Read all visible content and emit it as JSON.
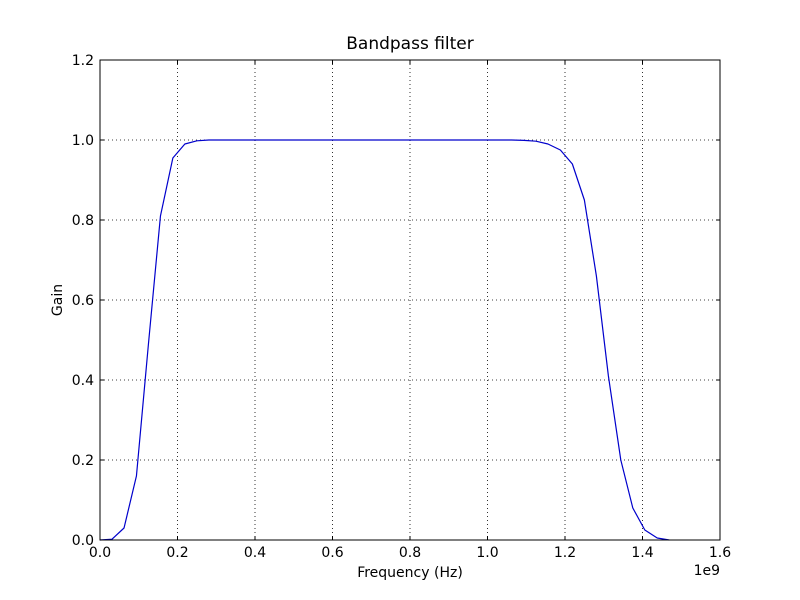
{
  "chart_data": {
    "type": "line",
    "title": "Bandpass filter",
    "xlabel": "Frequency (Hz)",
    "ylabel": "Gain",
    "x_offset_label": "1e9",
    "xlim": [
      0,
      1.6
    ],
    "ylim": [
      0,
      1.2
    ],
    "x_ticks": [
      0.0,
      0.2,
      0.4,
      0.6,
      0.8,
      1.0,
      1.2,
      1.4,
      1.6
    ],
    "x_tick_labels": [
      "0.0",
      "0.2",
      "0.4",
      "0.6",
      "0.8",
      "1.0",
      "1.2",
      "1.4",
      "1.6"
    ],
    "y_ticks": [
      0.0,
      0.2,
      0.4,
      0.6,
      0.8,
      1.0,
      1.2
    ],
    "y_tick_labels": [
      "0.0",
      "0.2",
      "0.4",
      "0.6",
      "0.8",
      "1.0",
      "1.2"
    ],
    "grid": true,
    "series": [
      {
        "color": "#0000cc",
        "x": [
          0.0,
          0.031,
          0.062,
          0.094,
          0.125,
          0.156,
          0.188,
          0.219,
          0.25,
          0.281,
          0.312,
          0.344,
          0.375,
          0.406,
          0.438,
          0.469,
          0.5,
          0.531,
          0.562,
          0.594,
          0.625,
          0.656,
          0.688,
          0.719,
          0.75,
          0.781,
          0.812,
          0.844,
          0.875,
          0.906,
          0.938,
          0.969,
          1.0,
          1.031,
          1.062,
          1.094,
          1.125,
          1.156,
          1.188,
          1.219,
          1.25,
          1.281,
          1.312,
          1.344,
          1.375,
          1.406,
          1.438,
          1.469
        ],
        "y": [
          0.0,
          0.002,
          0.03,
          0.16,
          0.49,
          0.81,
          0.955,
          0.99,
          0.998,
          1.0,
          1.0,
          1.0,
          1.0,
          1.0,
          1.0,
          1.0,
          1.0,
          1.0,
          1.0,
          1.0,
          1.0,
          1.0,
          1.0,
          1.0,
          1.0,
          1.0,
          1.0,
          1.0,
          1.0,
          1.0,
          1.0,
          1.0,
          1.0,
          1.0,
          1.0,
          0.999,
          0.997,
          0.99,
          0.975,
          0.94,
          0.85,
          0.66,
          0.41,
          0.2,
          0.08,
          0.025,
          0.005,
          0.0
        ]
      }
    ]
  }
}
